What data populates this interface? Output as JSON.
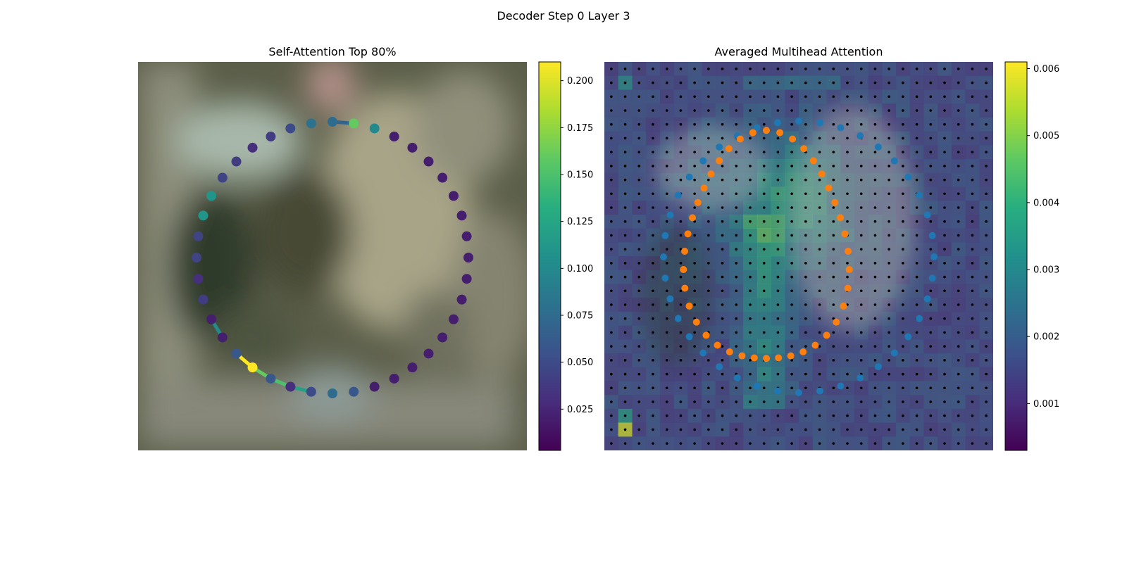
{
  "figure": {
    "title": "Decoder Step 0 Layer 3"
  },
  "chart_data": [
    {
      "type": "scatter",
      "title": "Self-Attention Top 80%",
      "description_series": "contour points on blurred image, colored by self-attention weight",
      "colormap": "viridis",
      "colorbar": {
        "min": 0.003,
        "max": 0.21,
        "ticks": [
          0.025,
          0.05,
          0.075,
          0.1,
          0.125,
          0.15,
          0.175,
          0.2
        ],
        "tick_labels": [
          "0.025",
          "0.050",
          "0.075",
          "0.100",
          "0.125",
          "0.150",
          "0.175",
          "0.200"
        ]
      },
      "point_count": 40,
      "values": [
        0.075,
        0.16,
        0.1,
        0.02,
        0.02,
        0.02,
        0.02,
        0.02,
        0.02,
        0.02,
        0.02,
        0.02,
        0.02,
        0.02,
        0.02,
        0.02,
        0.02,
        0.02,
        0.02,
        0.06,
        0.075,
        0.05,
        0.03,
        0.06,
        0.21,
        0.06,
        0.02,
        0.02,
        0.04,
        0.03,
        0.045,
        0.045,
        0.11,
        0.11,
        0.045,
        0.04,
        0.03,
        0.04,
        0.05,
        0.08
      ],
      "highlight_edges": [
        {
          "from": 26,
          "to": 27,
          "value": 0.1
        },
        {
          "from": 25,
          "to": 24,
          "value": 0.21
        },
        {
          "from": 24,
          "to": 23,
          "value": 0.16
        },
        {
          "from": 23,
          "to": 22,
          "value": 0.15
        },
        {
          "from": 22,
          "to": 21,
          "value": 0.12
        },
        {
          "from": 0,
          "to": 1,
          "value": 0.07
        }
      ]
    },
    {
      "type": "heatmap",
      "title": "Averaged Multihead Attention",
      "colormap": "viridis",
      "grid_size": [
        28,
        28
      ],
      "colorbar": {
        "min": 0.0003,
        "max": 0.0061,
        "ticks": [
          0.001,
          0.002,
          0.003,
          0.004,
          0.005,
          0.006
        ],
        "tick_labels": [
          "0.001",
          "0.002",
          "0.003",
          "0.004",
          "0.005",
          "0.006"
        ]
      },
      "series": [
        {
          "name": "",
          "color": "#1f77b4",
          "point_count": 40
        },
        {
          "name": "",
          "color": "#ff7f0e",
          "point_count": 40
        }
      ]
    }
  ]
}
